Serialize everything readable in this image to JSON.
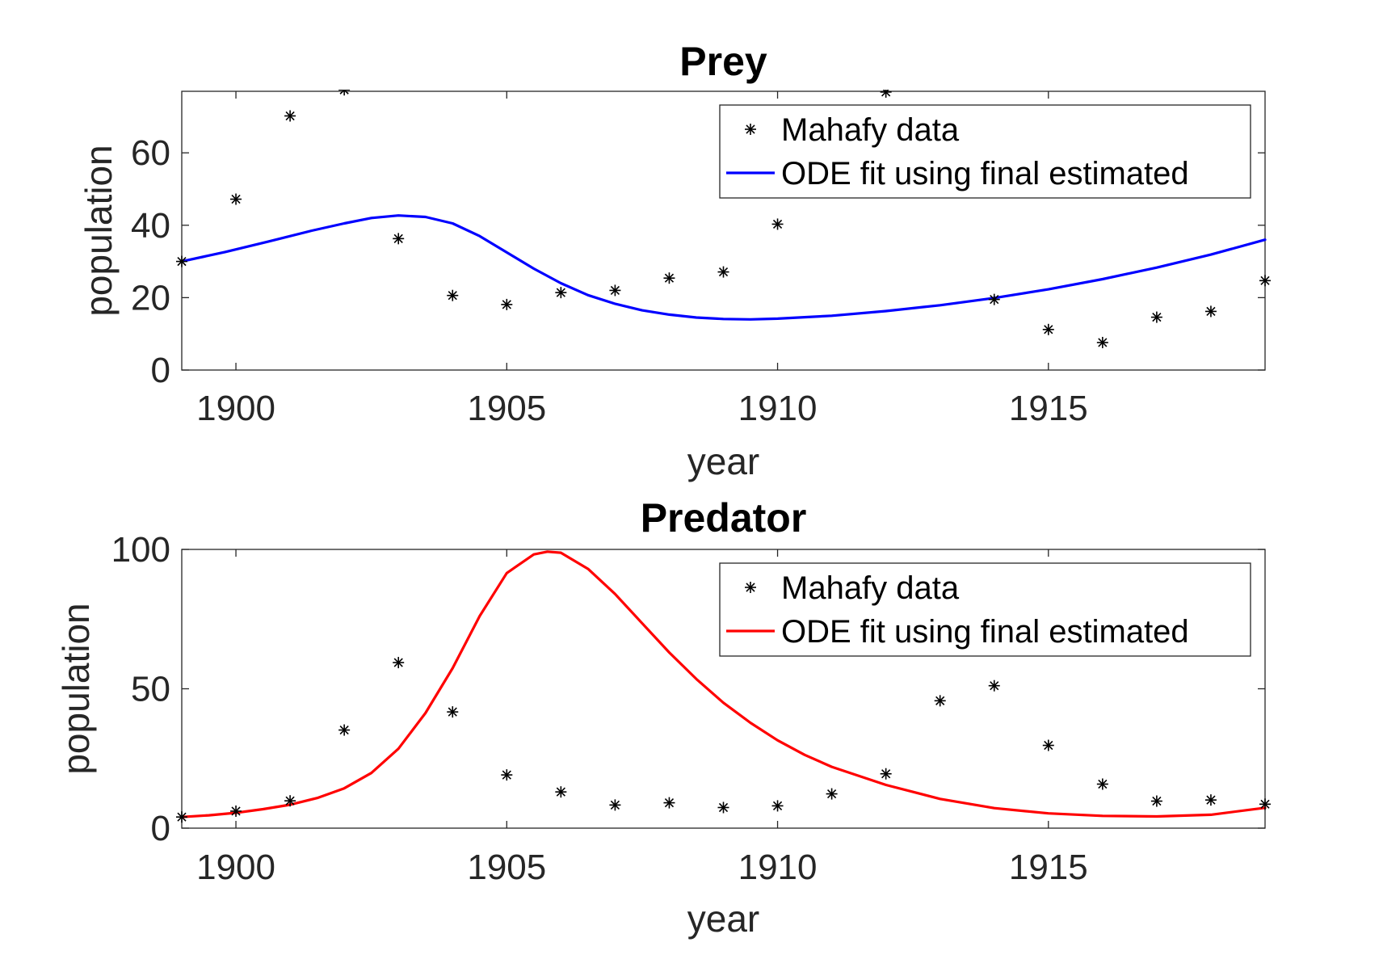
{
  "chart_data": [
    {
      "type": "line",
      "title": "Prey",
      "xlabel": "year",
      "ylabel": "population",
      "xlim": [
        1899,
        1919
      ],
      "ylim": [
        0,
        77
      ],
      "xticks": [
        1900,
        1905,
        1910,
        1915
      ],
      "yticks": [
        0,
        20,
        40,
        60
      ],
      "grid": false,
      "legend": {
        "placement": "top-right",
        "entries": [
          "Mahafy data",
          "ODE fit using final estimated"
        ]
      },
      "series": [
        {
          "name": "Mahafy data",
          "kind": "scatter",
          "marker": "asterisk",
          "color": "#000000",
          "x": [
            1899,
            1900,
            1901,
            1902,
            1903,
            1904,
            1905,
            1906,
            1907,
            1908,
            1909,
            1910,
            1912,
            1914,
            1915,
            1916,
            1917,
            1918,
            1919
          ],
          "y": [
            30,
            47.2,
            70.2,
            77.4,
            36.3,
            20.6,
            18.1,
            21.4,
            22,
            25.4,
            27.1,
            40.3,
            76.8,
            19.5,
            11.2,
            7.6,
            14.6,
            16.2,
            24.7
          ]
        },
        {
          "name": "ODE fit using final estimated",
          "kind": "line",
          "color": "#0000ff",
          "x": [
            1899,
            1899.8,
            1900.6,
            1901.4,
            1902,
            1902.5,
            1903,
            1903.5,
            1904,
            1904.5,
            1905,
            1905.5,
            1906,
            1906.5,
            1907,
            1907.5,
            1908,
            1908.5,
            1909,
            1909.5,
            1910,
            1911,
            1912,
            1913,
            1914,
            1915,
            1916,
            1917,
            1918,
            1919
          ],
          "y": [
            30,
            32.6,
            35.5,
            38.5,
            40.5,
            42,
            42.7,
            42.3,
            40.5,
            37,
            32.5,
            28,
            24,
            20.7,
            18.3,
            16.5,
            15.3,
            14.5,
            14.1,
            14,
            14.2,
            15,
            16.3,
            17.9,
            19.9,
            22.3,
            25.1,
            28.3,
            31.9,
            36
          ]
        }
      ]
    },
    {
      "type": "line",
      "title": "Predator",
      "xlabel": "year",
      "ylabel": "population",
      "xlim": [
        1899,
        1919
      ],
      "ylim": [
        0,
        100
      ],
      "xticks": [
        1900,
        1905,
        1910,
        1915
      ],
      "yticks": [
        0,
        50,
        100
      ],
      "grid": false,
      "legend": {
        "placement": "top-right",
        "entries": [
          "Mahafy data",
          "ODE fit using final estimated"
        ]
      },
      "series": [
        {
          "name": "Mahafy data",
          "kind": "scatter",
          "marker": "asterisk",
          "color": "#000000",
          "x": [
            1899,
            1900,
            1901,
            1902,
            1903,
            1904,
            1905,
            1906,
            1907,
            1908,
            1909,
            1910,
            1911,
            1912,
            1913,
            1914,
            1915,
            1916,
            1917,
            1918,
            1919
          ],
          "y": [
            4,
            6.1,
            9.8,
            35.2,
            59.4,
            41.7,
            19.1,
            13,
            8.3,
            9.1,
            7.4,
            8,
            12.3,
            19.5,
            45.7,
            51.1,
            29.7,
            15.8,
            9.7,
            10.1,
            8.6
          ]
        },
        {
          "name": "ODE fit using final estimated",
          "kind": "line",
          "color": "#ff0000",
          "x": [
            1899,
            1899.5,
            1900,
            1900.5,
            1901,
            1901.5,
            1902,
            1902.5,
            1903,
            1903.5,
            1904,
            1904.5,
            1905,
            1905.5,
            1905.75,
            1906,
            1906.5,
            1907,
            1907.5,
            1908,
            1908.5,
            1909,
            1909.5,
            1910,
            1910.5,
            1911,
            1912,
            1913,
            1914,
            1915,
            1916,
            1917,
            1918,
            1919
          ],
          "y": [
            4,
            4.6,
            5.5,
            6.8,
            8.4,
            10.8,
            14.3,
            19.8,
            28.5,
            41.3,
            57.4,
            76.1,
            91.5,
            98.2,
            99.2,
            98.8,
            93,
            84,
            73.5,
            63,
            53.5,
            45,
            37.8,
            31.5,
            26.3,
            22,
            15.5,
            10.5,
            7.2,
            5.3,
            4.4,
            4.2,
            4.8,
            7.3
          ]
        }
      ]
    }
  ]
}
